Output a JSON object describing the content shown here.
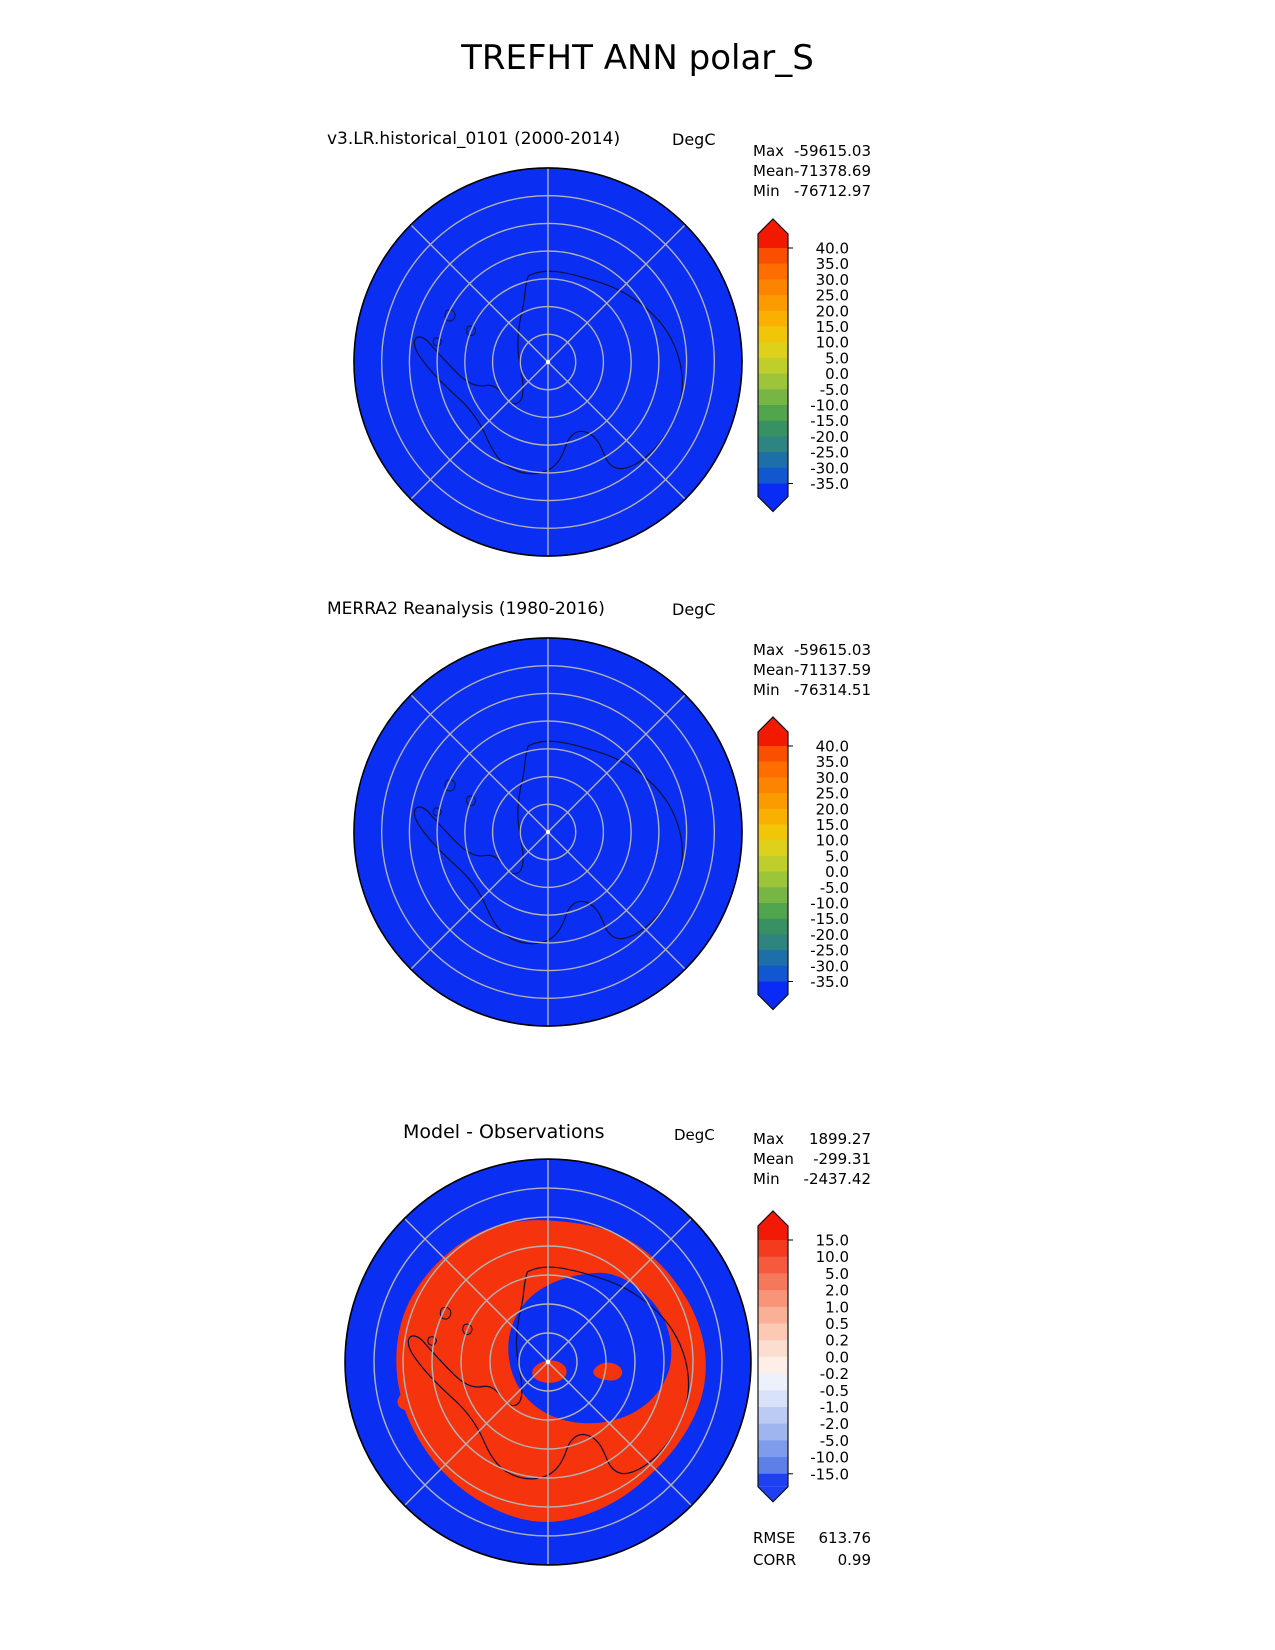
{
  "title": "TREFHT ANN polar_S",
  "colors": {
    "map_blue": "#0b2ff2",
    "diff_red": "#f5340e",
    "coastline": "#10103a",
    "graticule": "#b3b3b3"
  },
  "panels": [
    {
      "subtitle": "v3.LR.historical_0101 (2000-2014)",
      "units": "DegC",
      "stats": {
        "max_label": "Max",
        "max_value": "-59615.03",
        "mean_label": "Mean",
        "mean_value": "-71378.69",
        "min_label": "Min",
        "min_value": "-76712.97"
      },
      "colorbar": {
        "ticks": [
          "40.0",
          "35.0",
          "30.0",
          "25.0",
          "20.0",
          "15.0",
          "10.0",
          "5.0",
          "0.0",
          "-5.0",
          "-10.0",
          "-15.0",
          "-20.0",
          "-25.0",
          "-30.0",
          "-35.0"
        ],
        "segment_colors": [
          "#fb4f00",
          "#fd6d00",
          "#fd8400",
          "#fb9b00",
          "#f9b000",
          "#f2c608",
          "#ddd11c",
          "#bfce2b",
          "#9cc53a",
          "#77b545",
          "#51a54d",
          "#389162",
          "#2d8480",
          "#1c6fa9",
          "#1157d0"
        ],
        "arrow_top": "#f11a00",
        "arrow_bottom": "#0a2af5"
      }
    },
    {
      "subtitle": "MERRA2 Reanalysis (1980-2016)",
      "units": "DegC",
      "stats": {
        "max_label": "Max",
        "max_value": "-59615.03",
        "mean_label": "Mean",
        "mean_value": "-71137.59",
        "min_label": "Min",
        "min_value": "-76314.51"
      },
      "colorbar": {
        "ticks": [
          "40.0",
          "35.0",
          "30.0",
          "25.0",
          "20.0",
          "15.0",
          "10.0",
          "5.0",
          "0.0",
          "-5.0",
          "-10.0",
          "-15.0",
          "-20.0",
          "-25.0",
          "-30.0",
          "-35.0"
        ],
        "segment_colors": [
          "#fb4f00",
          "#fd6d00",
          "#fd8400",
          "#fb9b00",
          "#f9b000",
          "#f2c608",
          "#ddd11c",
          "#bfce2b",
          "#9cc53a",
          "#77b545",
          "#51a54d",
          "#389162",
          "#2d8480",
          "#1c6fa9",
          "#1157d0"
        ],
        "arrow_top": "#f11a00",
        "arrow_bottom": "#0a2af5"
      }
    },
    {
      "subtitle": "Model - Observations",
      "units": "DegC",
      "stats": {
        "max_label": "Max",
        "max_value": "1899.27",
        "mean_label": "Mean",
        "mean_value": "-299.31",
        "min_label": "Min",
        "min_value": "-2437.42"
      },
      "colorbar": {
        "ticks": [
          "15.0",
          "10.0",
          "5.0",
          "2.0",
          "1.0",
          "0.5",
          "0.2",
          "0.0",
          "-0.2",
          "-0.5",
          "-1.0",
          "-2.0",
          "-5.0",
          "-10.0",
          "-15.0"
        ],
        "segment_colors": [
          "#f43b1e",
          "#f55a3e",
          "#f6785b",
          "#f89579",
          "#f9b096",
          "#fbc9b4",
          "#fcded0",
          "#fdefe7",
          "#edf1fc",
          "#d8e2f8",
          "#bccbf4",
          "#9fb5f0",
          "#7f9bec",
          "#5f7fe8"
        ],
        "arrow_top": "#f21a07",
        "arrow_bottom": "#1e40f2"
      },
      "metrics": {
        "rmse_label": "RMSE",
        "rmse_value": "613.76",
        "corr_label": "CORR",
        "corr_value": "0.99"
      }
    }
  ],
  "chart_data": [
    {
      "type": "heatmap",
      "title": "v3.LR.historical_0101 (2000-2014)",
      "variable": "TREFHT",
      "season": "ANN",
      "region": "polar_S",
      "units": "DegC",
      "projection": "south polar stereographic",
      "levels": [
        -35,
        -30,
        -25,
        -20,
        -15,
        -10,
        -5,
        0,
        5,
        10,
        15,
        20,
        25,
        30,
        35,
        40
      ],
      "colorbar_extend": "both",
      "stats": {
        "max": -59615.03,
        "mean": -71378.69,
        "min": -76712.97
      },
      "description": "Entire southern polar domain saturated at the below -35 color (uniform blue disk) with Antarctica coastline overlaid and gray latitude/longitude graticule."
    },
    {
      "type": "heatmap",
      "title": "MERRA2 Reanalysis (1980-2016)",
      "variable": "TREFHT",
      "season": "ANN",
      "region": "polar_S",
      "units": "DegC",
      "projection": "south polar stereographic",
      "levels": [
        -35,
        -30,
        -25,
        -20,
        -15,
        -10,
        -5,
        0,
        5,
        10,
        15,
        20,
        25,
        30,
        35,
        40
      ],
      "colorbar_extend": "both",
      "stats": {
        "max": -59615.03,
        "mean": -71137.59,
        "min": -76314.51
      },
      "description": "Entire southern polar domain saturated at the below -35 color (uniform blue disk), same graticule and coastline as model panel."
    },
    {
      "type": "heatmap",
      "title": "Model - Observations",
      "variable": "TREFHT difference",
      "season": "ANN",
      "region": "polar_S",
      "units": "DegC",
      "projection": "south polar stereographic",
      "levels": [
        -15,
        -10,
        -5,
        -2,
        -1,
        -0.5,
        -0.2,
        0,
        0.2,
        0.5,
        1,
        2,
        5,
        10,
        15
      ],
      "colorbar_extend": "both",
      "stats": {
        "max": 1899.27,
        "mean": -299.31,
        "min": -2437.42,
        "rmse": 613.76,
        "corr": 0.99
      },
      "description": "Saturated positive differences (red, above +15) form a jagged ring over the Antarctic coastal margin and West Antarctica; saturated negative differences (blue, below -15) cover the surrounding ocean and the East Antarctic interior."
    }
  ]
}
